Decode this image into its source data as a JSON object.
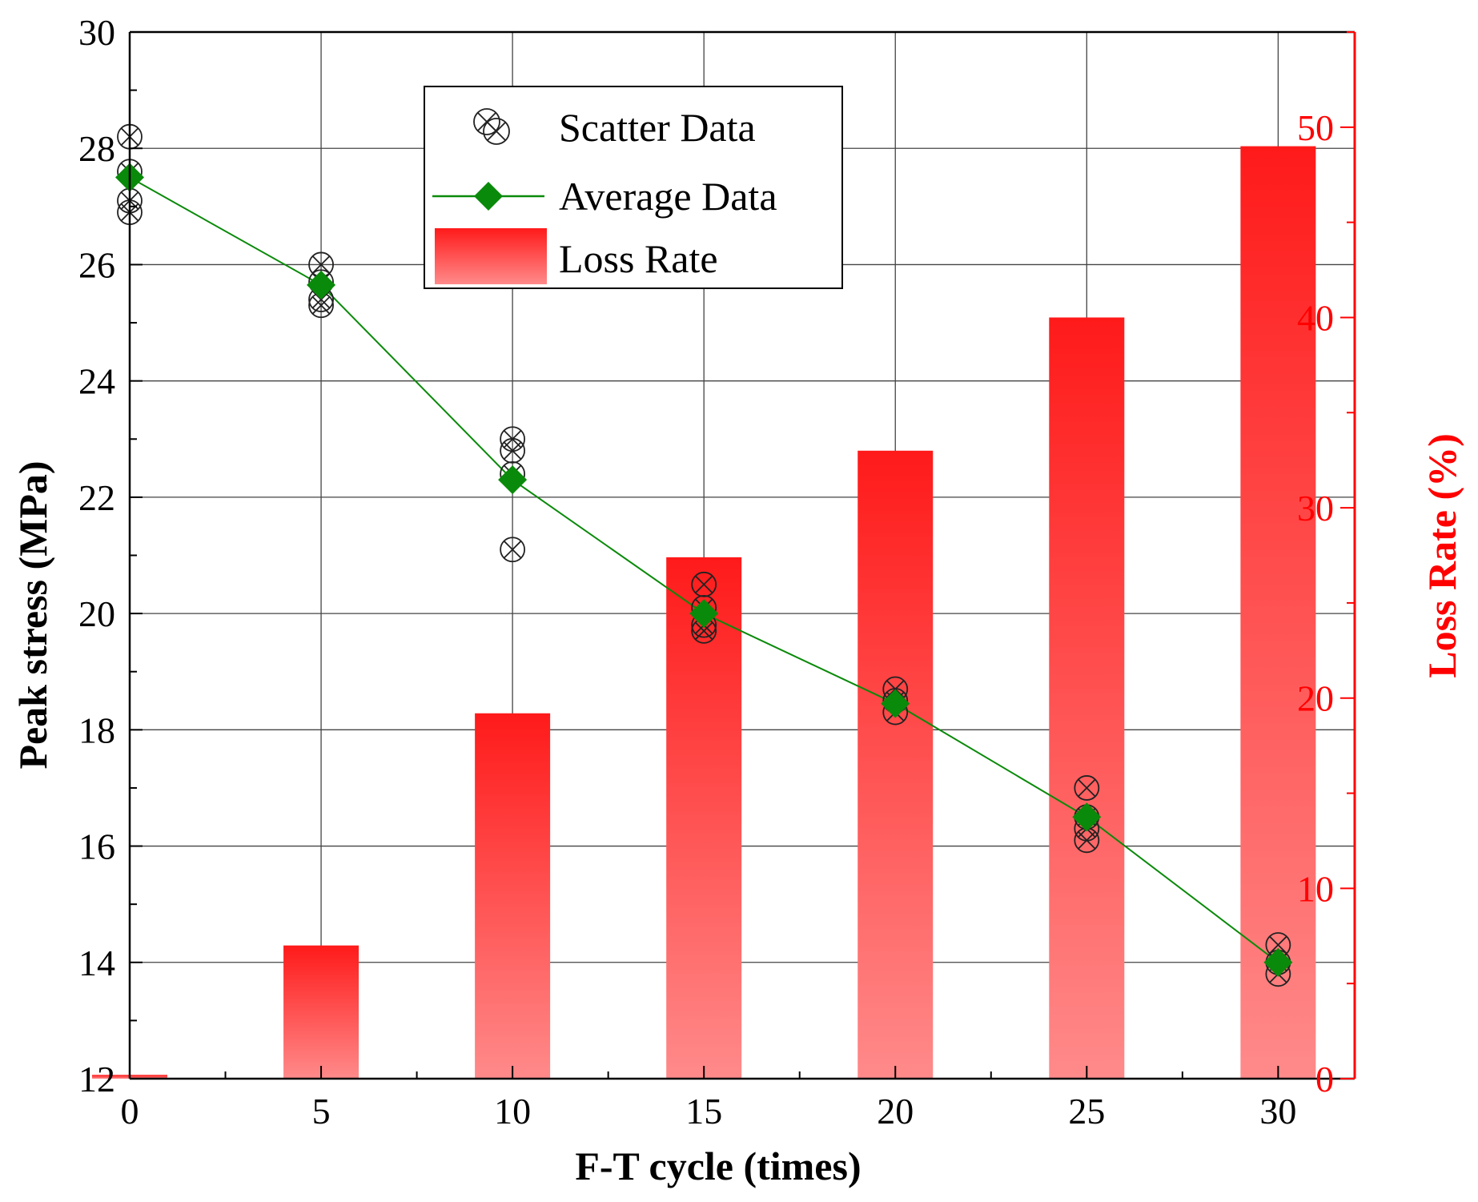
{
  "chart_data": {
    "type": "bar+line+scatter",
    "x_axis": {
      "label": "F-T cycle (times)",
      "range": [
        0,
        32
      ],
      "ticks": [
        0,
        5,
        10,
        15,
        20,
        25,
        30
      ]
    },
    "y_axis_left": {
      "label": "Peak stress (MPa)",
      "range": [
        12,
        30
      ],
      "ticks": [
        12,
        14,
        16,
        18,
        20,
        22,
        24,
        26,
        28,
        30
      ]
    },
    "y_axis_right": {
      "label": "Loss Rate (%)",
      "range": [
        0,
        55
      ],
      "ticks": [
        0,
        10,
        20,
        30,
        40,
        50
      ],
      "color": "#ff0000"
    },
    "grid": true,
    "legend": {
      "position": "top-center",
      "entries": [
        "Scatter Data",
        "Average Data",
        "Loss Rate"
      ]
    },
    "series": [
      {
        "name": "Scatter Data",
        "type": "scatter",
        "axis": "left",
        "marker": "crossed-circle",
        "color": "#222222",
        "points": [
          [
            0,
            28.2
          ],
          [
            0,
            27.6
          ],
          [
            0,
            27.1
          ],
          [
            0,
            26.9
          ],
          [
            5,
            26.0
          ],
          [
            5,
            25.7
          ],
          [
            5,
            25.4
          ],
          [
            5,
            25.3
          ],
          [
            10,
            23.0
          ],
          [
            10,
            22.8
          ],
          [
            10,
            22.4
          ],
          [
            10,
            21.1
          ],
          [
            15,
            20.5
          ],
          [
            15,
            20.1
          ],
          [
            15,
            19.8
          ],
          [
            15,
            19.7
          ],
          [
            20,
            18.7
          ],
          [
            20,
            18.5
          ],
          [
            20,
            18.3
          ],
          [
            25,
            17.0
          ],
          [
            25,
            16.5
          ],
          [
            25,
            16.3
          ],
          [
            25,
            16.1
          ],
          [
            30,
            14.3
          ],
          [
            30,
            14.0
          ],
          [
            30,
            13.8
          ]
        ]
      },
      {
        "name": "Average Data",
        "type": "line",
        "axis": "left",
        "marker": "diamond",
        "color": "#0a8a0a",
        "x": [
          0,
          5,
          10,
          15,
          20,
          25,
          30
        ],
        "y": [
          27.5,
          25.65,
          22.3,
          20.0,
          18.45,
          16.5,
          14.0
        ]
      },
      {
        "name": "Loss Rate",
        "type": "bar",
        "axis": "right",
        "color": "#ff2020",
        "x": [
          0,
          5,
          10,
          15,
          20,
          25,
          30
        ],
        "values": [
          0.2,
          7.0,
          19.2,
          27.4,
          33.0,
          40.0,
          49.0
        ]
      }
    ]
  }
}
